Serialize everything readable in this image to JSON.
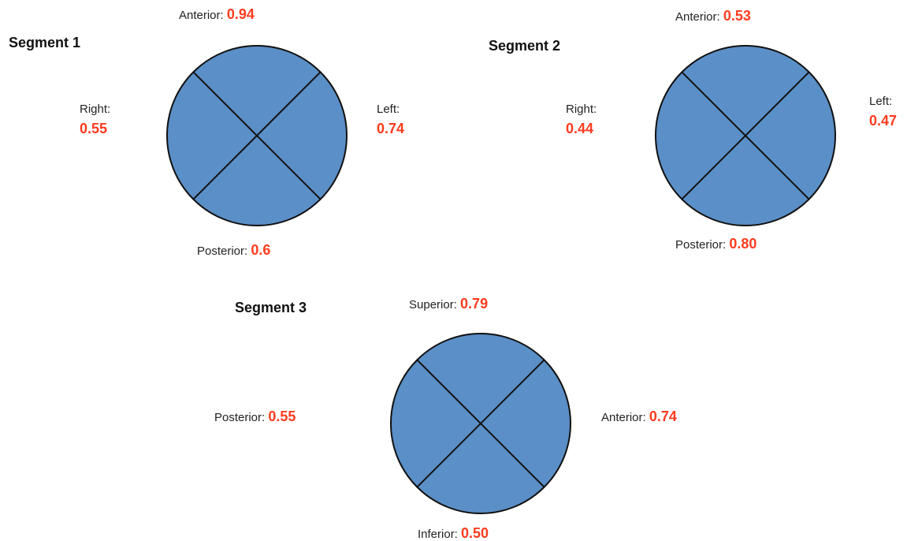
{
  "colors": {
    "circle_fill": "#5b8fc7",
    "circle_stroke": "#111111",
    "value_red": "#ff3b1f"
  },
  "segments": [
    {
      "title": "Segment 1",
      "labels": {
        "top": {
          "name": "Anterior:",
          "value": "0.94"
        },
        "left": {
          "name": "Right:",
          "value": "0.55"
        },
        "right": {
          "name": "Left:",
          "value": "0.74"
        },
        "bottom": {
          "name": "Posterior:",
          "value": "0.6"
        }
      }
    },
    {
      "title": "Segment 2",
      "labels": {
        "top": {
          "name": "Anterior:",
          "value": "0.53"
        },
        "left": {
          "name": "Right:",
          "value": "0.44"
        },
        "right": {
          "name": "Left:",
          "value": "0.47"
        },
        "bottom": {
          "name": "Posterior:",
          "value": "0.80"
        }
      }
    },
    {
      "title": "Segment 3",
      "labels": {
        "top": {
          "name": "Superior:",
          "value": "0.79"
        },
        "left": {
          "name": "Posterior:",
          "value": "0.55"
        },
        "right": {
          "name": "Anterior:",
          "value": "0.74"
        },
        "bottom": {
          "name": "Inferior:",
          "value": "0.50"
        }
      }
    }
  ]
}
